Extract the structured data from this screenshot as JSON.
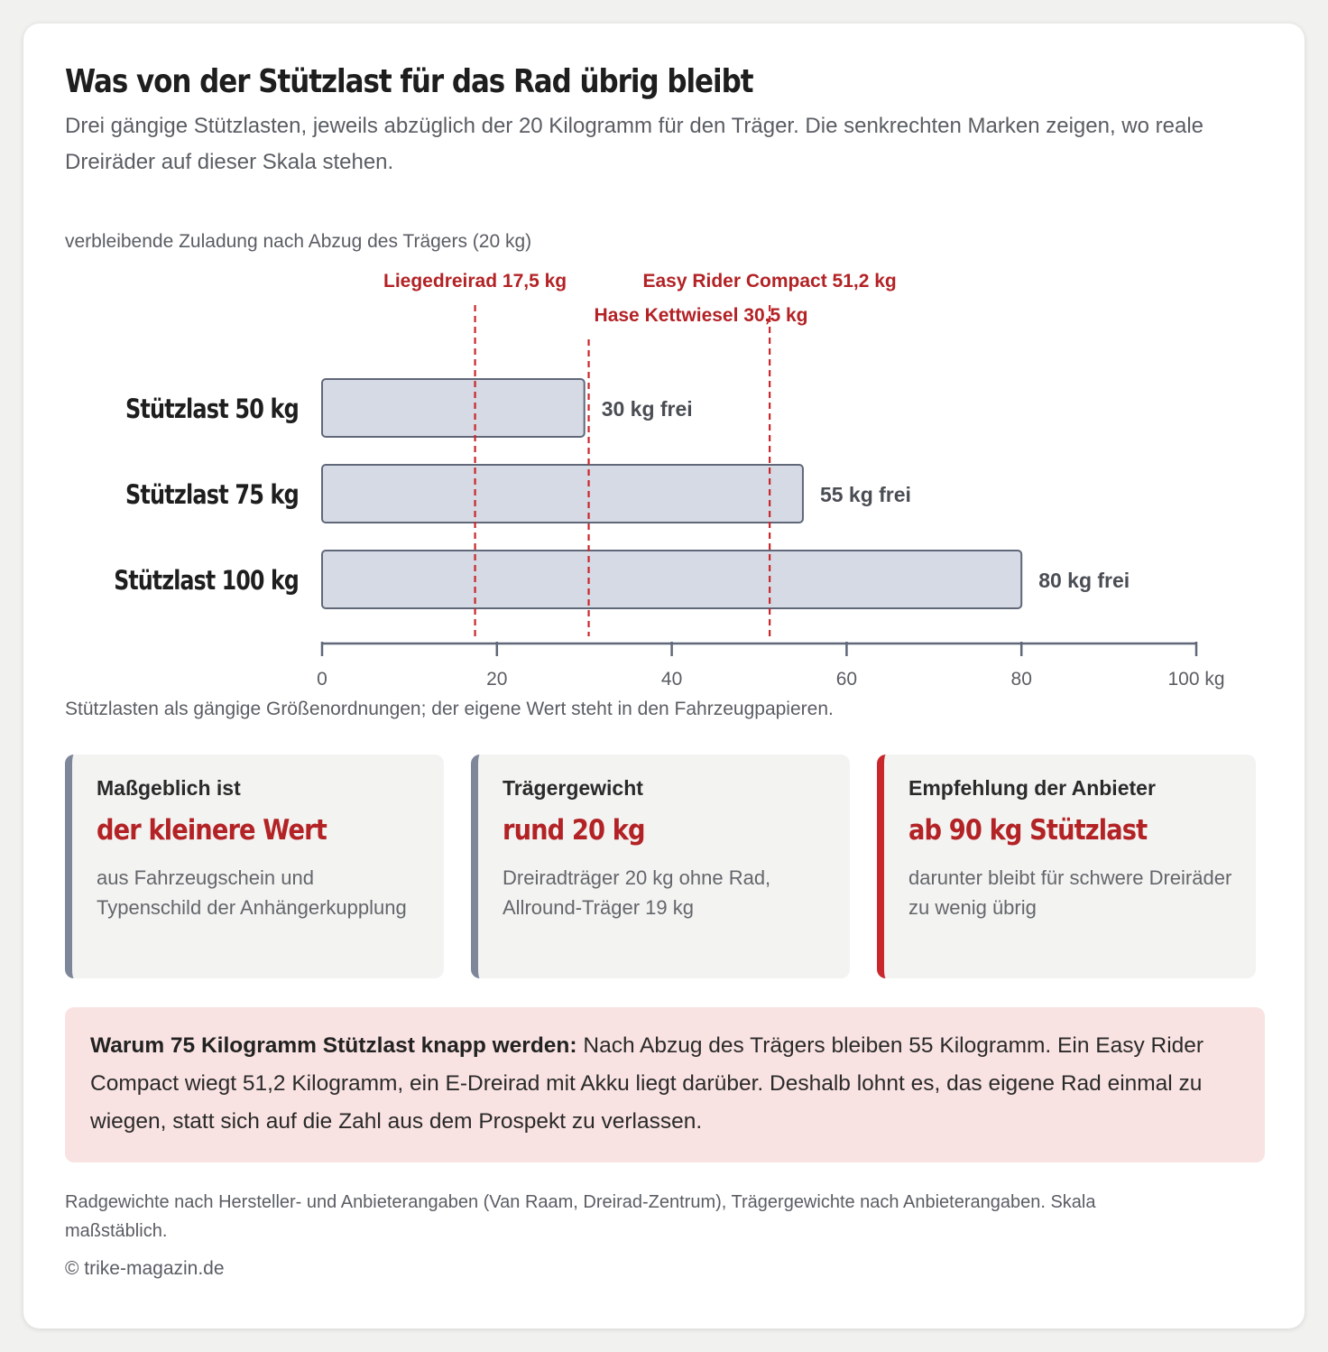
{
  "header": {
    "title": "Was von der Stützlast für das Rad übrig bleibt",
    "subtitle": "Drei gängige Stützlasten, jeweils abzüglich der 20 Kilogramm für den Träger. Die senkrechten Marken zeigen, wo reale Dreiräder auf dieser Skala stehen."
  },
  "chart_data": {
    "type": "bar",
    "orientation": "horizontal",
    "title": "verbleibende Zuladung nach Abzug des Trägers (20 kg)",
    "categories": [
      "Stützlast 50 kg",
      "Stützlast 75 kg",
      "Stützlast 100 kg"
    ],
    "values": [
      30,
      55,
      80
    ],
    "data_labels": [
      "30 kg frei",
      "55 kg frei",
      "80 kg frei"
    ],
    "xlim": [
      0,
      100
    ],
    "x_ticks": [
      0,
      20,
      40,
      60,
      80,
      100
    ],
    "x_tick_labels": [
      "0",
      "20",
      "40",
      "60",
      "80",
      "100 kg"
    ],
    "reference_lines": [
      {
        "label": "Liegedreirad 17,5 kg",
        "value": 17.5
      },
      {
        "label": "Hase Kettwiesel 30,5 kg",
        "value": 30.5
      },
      {
        "label": "Easy Rider Compact 51,2 kg",
        "value": 51.2
      }
    ],
    "colors": {
      "bar_fill": "#d6dae4",
      "bar_stroke": "#5f6779",
      "reference": "#c9272c",
      "axis": "#5f6779"
    },
    "grid": false,
    "note": "Stützlasten als gängige Größenordnungen; der eigene Wert steht in den Fahrzeugpapieren."
  },
  "cards": [
    {
      "label": "Maßgeblich ist",
      "value": "der kleinere Wert",
      "text": "aus Fahrzeugschein und Typenschild der Anhängerkupplung"
    },
    {
      "label": "Trägergewicht",
      "value": "rund 20 kg",
      "text": "Dreiradträger 20 kg ohne Rad, Allround-Träger 19 kg"
    },
    {
      "label": "Empfehlung der Anbieter",
      "value": "ab 90 kg Stützlast",
      "text": "darunter bleibt für schwere Dreiräder zu wenig übrig"
    }
  ],
  "callout": {
    "lead": "Warum 75 Kilogramm Stützlast knapp werden:",
    "text": " Nach Abzug des Trägers bleiben 55 Kilogramm. Ein Easy Rider Compact wiegt 51,2 Kilogramm, ein E-Dreirad mit Akku liegt darüber. Deshalb lohnt es, das eigene Rad einmal zu wiegen, statt sich auf die Zahl aus dem Prospekt zu verlassen."
  },
  "footer": {
    "source": "Radgewichte nach Hersteller- und Anbieterangaben (Van Raam, Dreirad-Zentrum), Trägergewichte nach Anbieterangaben. Skala maßstäblich.",
    "copyright": "© trike-magazin.de"
  }
}
